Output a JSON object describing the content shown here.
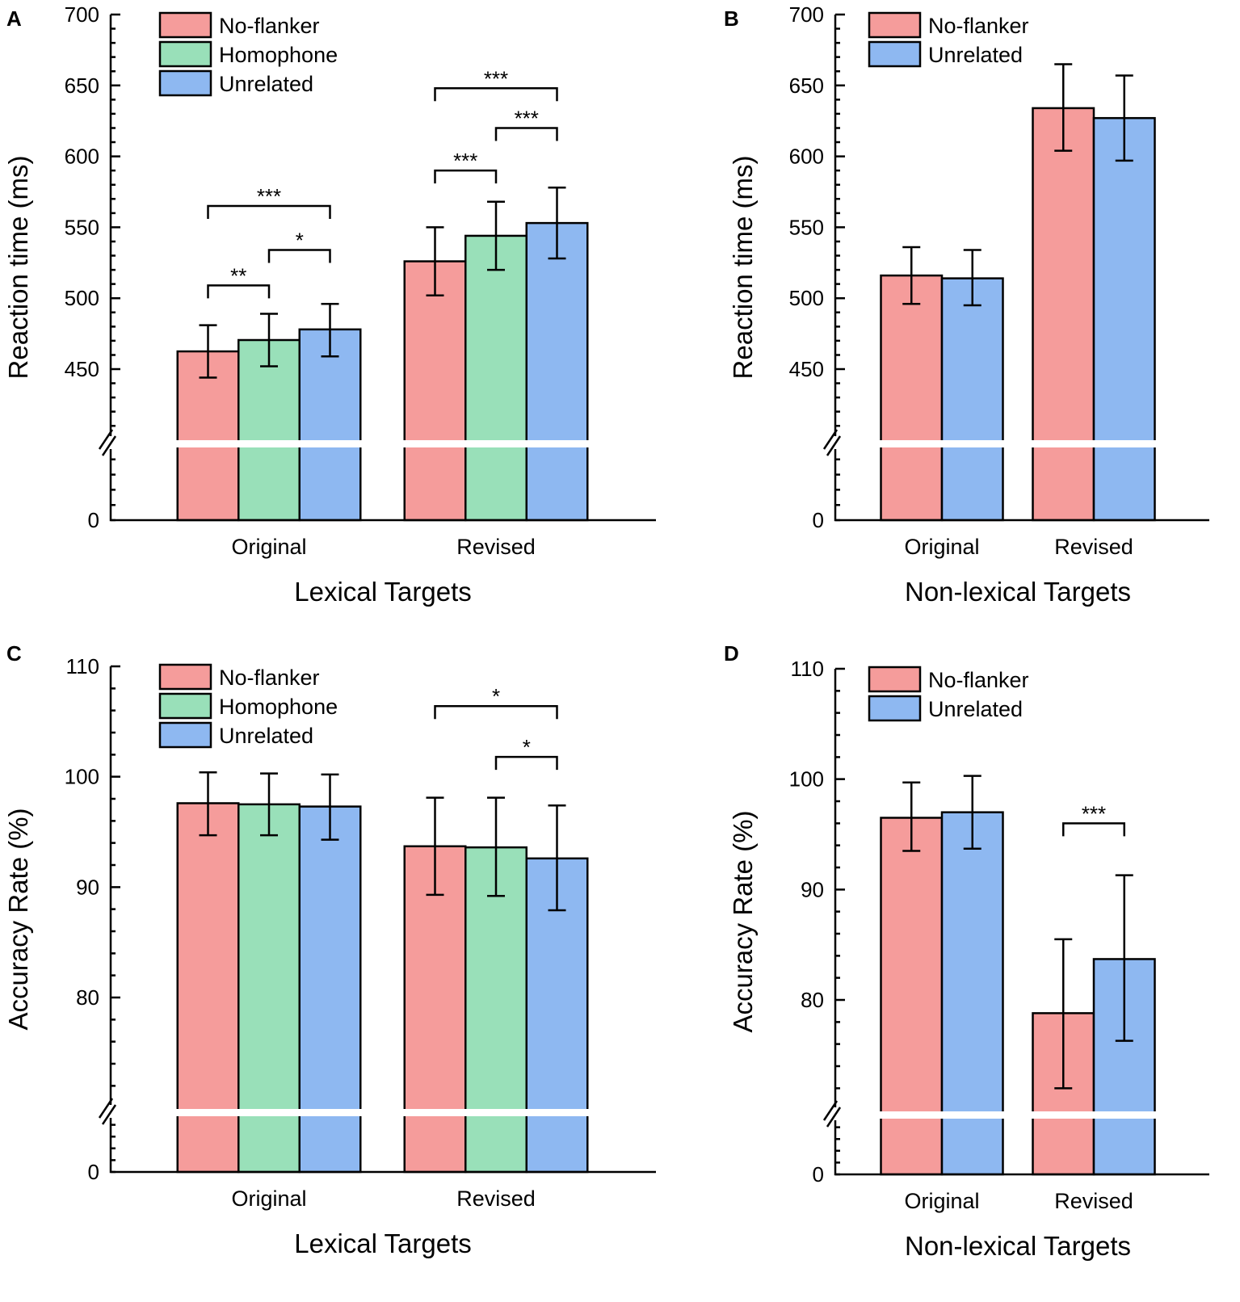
{
  "colors": {
    "No-flanker": "#F59C9B",
    "Homophone": "#99E0B9",
    "Unrelated": "#8EB8F1"
  },
  "chart_data": [
    {
      "panel": "A",
      "type": "bar",
      "ylabel": "Reaction time (ms)",
      "xlabel": "Lexical Targets",
      "yticks": [
        "450",
        "500",
        "550",
        "600",
        "650",
        "700"
      ],
      "ytick_values": [
        450,
        500,
        550,
        600,
        650,
        700
      ],
      "zero_label": "0",
      "ylim": [
        0,
        700
      ],
      "axis_break": true,
      "legend": [
        "No-flanker",
        "Homophone",
        "Unrelated"
      ],
      "legend_position": "top-left",
      "categories": [
        "Original",
        "Revised"
      ],
      "series": [
        {
          "name": "No-flanker",
          "values": [
            462.5,
            526
          ],
          "err_low": [
            444,
            502
          ],
          "err_high": [
            481,
            550
          ]
        },
        {
          "name": "Homophone",
          "values": [
            470.5,
            544
          ],
          "err_low": [
            452,
            520
          ],
          "err_high": [
            489,
            568
          ]
        },
        {
          "name": "Unrelated",
          "values": [
            478,
            553
          ],
          "err_low": [
            459,
            528
          ],
          "err_high": [
            496,
            578
          ]
        }
      ],
      "significance": [
        {
          "category": 0,
          "from": 0,
          "to": 1,
          "label": "**",
          "y": 509
        },
        {
          "category": 0,
          "from": 1,
          "to": 2,
          "label": "*",
          "y": 534
        },
        {
          "category": 0,
          "from": 0,
          "to": 2,
          "label": "***",
          "y": 565
        },
        {
          "category": 1,
          "from": 0,
          "to": 1,
          "label": "***",
          "y": 590
        },
        {
          "category": 1,
          "from": 1,
          "to": 2,
          "label": "***",
          "y": 620
        },
        {
          "category": 1,
          "from": 0,
          "to": 2,
          "label": "***",
          "y": 648
        }
      ]
    },
    {
      "panel": "B",
      "type": "bar",
      "ylabel": "Reaction time (ms)",
      "xlabel": "Non-lexical Targets",
      "yticks": [
        "450",
        "500",
        "550",
        "600",
        "650",
        "700"
      ],
      "ytick_values": [
        450,
        500,
        550,
        600,
        650,
        700
      ],
      "zero_label": "0",
      "ylim": [
        0,
        700
      ],
      "axis_break": true,
      "legend": [
        "No-flanker",
        "Unrelated"
      ],
      "legend_position": "top-left",
      "categories": [
        "Original",
        "Revised"
      ],
      "series": [
        {
          "name": "No-flanker",
          "values": [
            516,
            634
          ],
          "err_low": [
            496,
            604
          ],
          "err_high": [
            536,
            665
          ]
        },
        {
          "name": "Unrelated",
          "values": [
            514,
            627
          ],
          "err_low": [
            495,
            597
          ],
          "err_high": [
            534,
            657
          ]
        }
      ],
      "significance": []
    },
    {
      "panel": "C",
      "type": "bar",
      "ylabel": "Accuracy Rate (%)",
      "xlabel": "Lexical Targets",
      "yticks": [
        "80",
        "90",
        "100",
        "110"
      ],
      "ytick_values": [
        80,
        90,
        100,
        110
      ],
      "zero_label": "0",
      "ylim": [
        0,
        110
      ],
      "axis_break": true,
      "legend": [
        "No-flanker",
        "Homophone",
        "Unrelated"
      ],
      "legend_position": "top-left",
      "categories": [
        "Original",
        "Revised"
      ],
      "series": [
        {
          "name": "No-flanker",
          "values": [
            97.6,
            93.7
          ],
          "err_low": [
            94.7,
            89.3
          ],
          "err_high": [
            100.4,
            98.1
          ]
        },
        {
          "name": "Homophone",
          "values": [
            97.5,
            93.6
          ],
          "err_low": [
            94.7,
            89.2
          ],
          "err_high": [
            100.3,
            98.1
          ]
        },
        {
          "name": "Unrelated",
          "values": [
            97.3,
            92.6
          ],
          "err_low": [
            94.3,
            87.9
          ],
          "err_high": [
            100.2,
            97.4
          ]
        }
      ],
      "significance": [
        {
          "category": 1,
          "from": 1,
          "to": 2,
          "label": "*",
          "y": 101.8
        },
        {
          "category": 1,
          "from": 0,
          "to": 2,
          "label": "*",
          "y": 106.4
        }
      ]
    },
    {
      "panel": "D",
      "type": "bar",
      "ylabel": "Accuracy Rate (%)",
      "xlabel": "Non-lexical Targets",
      "yticks": [
        "80",
        "90",
        "100",
        "110"
      ],
      "ytick_values": [
        80,
        90,
        100,
        110
      ],
      "zero_label": "0",
      "ylim": [
        0,
        110
      ],
      "axis_break": true,
      "legend": [
        "No-flanker",
        "Unrelated"
      ],
      "legend_position": "top-left",
      "categories": [
        "Original",
        "Revised"
      ],
      "series": [
        {
          "name": "No-flanker",
          "values": [
            96.5,
            78.8
          ],
          "err_low": [
            93.5,
            72.0
          ],
          "err_high": [
            99.7,
            85.5
          ]
        },
        {
          "name": "Unrelated",
          "values": [
            97.0,
            83.7
          ],
          "err_low": [
            93.7,
            76.3
          ],
          "err_high": [
            100.3,
            91.3
          ]
        }
      ],
      "significance": [
        {
          "category": 1,
          "from": 0,
          "to": 1,
          "label": "***",
          "y": 96.0
        }
      ]
    }
  ]
}
